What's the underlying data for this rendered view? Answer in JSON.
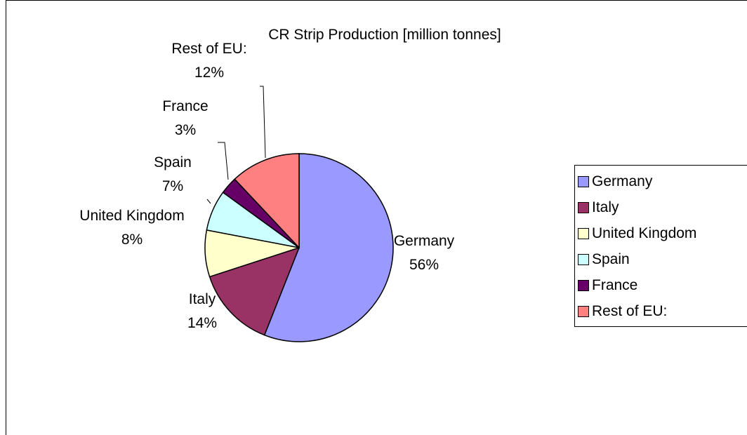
{
  "chart_data": {
    "type": "pie",
    "title": "CR Strip Production [million tonnes]",
    "categories": [
      "Germany",
      "Italy",
      "United Kingdom",
      "Spain",
      "France",
      "Rest of EU:"
    ],
    "values": [
      56,
      14,
      8,
      7,
      3,
      12
    ],
    "labels": [
      "56%",
      "14%",
      "8%",
      "7%",
      "3%",
      "12%"
    ],
    "colors": [
      "#9999ff",
      "#993366",
      "#ffffcc",
      "#ccffff",
      "#660066",
      "#ff8080"
    ],
    "legend": "right",
    "start_angle_deg": 0,
    "direction": "clockwise"
  }
}
